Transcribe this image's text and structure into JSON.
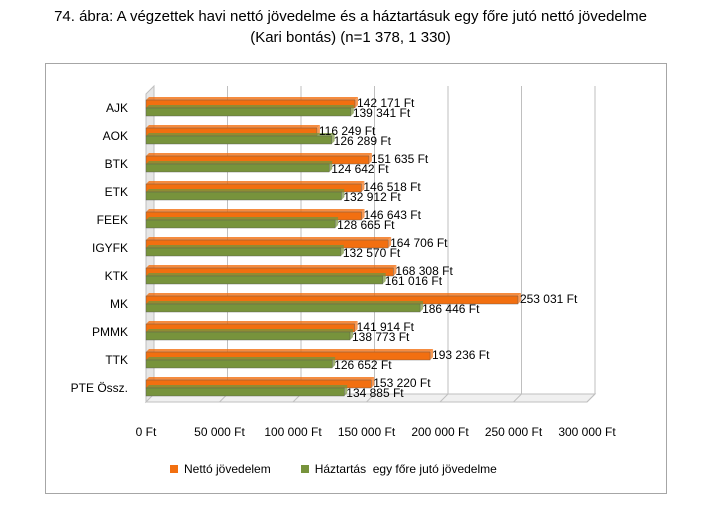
{
  "title_line1": "74. ábra: A végzettek havi nettó jövedelme és a háztartásuk egy főre jutó nettó jövedelme",
  "title_line2": "(Kari bontás) (n=1 378, 1 330)",
  "colors": {
    "netto": "#f26f10",
    "haztartas": "#77933c",
    "grid": "#bfbfbf",
    "wall": "#e6e6e6"
  },
  "chart_data": {
    "type": "bar",
    "orientation": "horizontal",
    "title": "74. ábra: A végzettek havi nettó jövedelme és a háztartásuk egy főre jutó nettó jövedelme (Kari bontás) (n=1 378, 1 330)",
    "categories": [
      "AJK",
      "AOK",
      "BTK",
      "ETK",
      "FEEK",
      "IGYFK",
      "KTK",
      "MK",
      "PMMK",
      "TTK",
      "PTE Össz."
    ],
    "series": [
      {
        "name": "Nettó jövedelem",
        "values": [
          142171,
          116249,
          151635,
          146518,
          146643,
          164706,
          168308,
          253031,
          141914,
          193236,
          153220
        ],
        "labels": [
          "142 171 Ft",
          "116 249 Ft",
          "151 635 Ft",
          "146 518 Ft",
          "146 643 Ft",
          "164 706 Ft",
          "168 308 Ft",
          "253 031 Ft",
          "141 914 Ft",
          "193 236 Ft",
          "153 220 Ft"
        ]
      },
      {
        "name": "Háztartás  egy főre jutó jövedelme",
        "values": [
          139341,
          126289,
          124642,
          132912,
          128665,
          132570,
          161016,
          186446,
          138773,
          126652,
          134885
        ],
        "labels": [
          "139 341 Ft",
          "126 289 Ft",
          "124 642 Ft",
          "132 912 Ft",
          "128 665 Ft",
          "132 570 Ft",
          "161 016 Ft",
          "186 446 Ft",
          "138 773 Ft",
          "126 652 Ft",
          "134 885 Ft"
        ]
      }
    ],
    "xlim": [
      0,
      300000
    ],
    "xticks": [
      0,
      50000,
      100000,
      150000,
      200000,
      250000,
      300000
    ],
    "xtick_labels": [
      "0 Ft",
      "50 000 Ft",
      "100 000 Ft",
      "150 000 Ft",
      "200 000 Ft",
      "250 000 Ft",
      "300 000 Ft"
    ],
    "grid": true,
    "legend_position": "bottom"
  }
}
